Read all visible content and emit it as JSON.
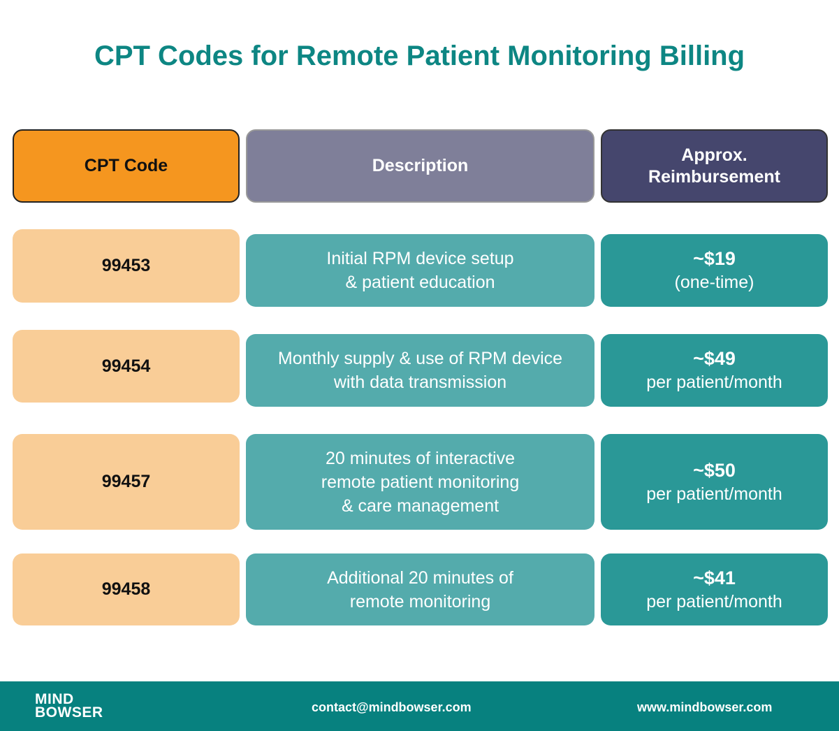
{
  "title": "CPT Codes for Remote Patient Monitoring Billing",
  "headers": {
    "code": "CPT Code",
    "description": "Description",
    "reimbursement_line1": "Approx.",
    "reimbursement_line2": "Reimbursement"
  },
  "colors": {
    "title": "#0d8683",
    "code_header": "#f5961f",
    "description_header": "#7f7f99",
    "reimbursement_header": "#45466d",
    "code_cell": "#f9cd97",
    "description_cell": "#54abac",
    "reimbursement_cell": "#2a9897",
    "footer": "#07817f"
  },
  "rows": [
    {
      "code": "99453",
      "desc1": "Initial RPM device setup",
      "desc2": "& patient education",
      "desc3": "",
      "amount": "~$19",
      "note": "(one-time)"
    },
    {
      "code": "99454",
      "desc1": "Monthly supply & use of RPM device",
      "desc2": "with data transmission",
      "desc3": "",
      "amount": "~$49",
      "note": "per patient/month"
    },
    {
      "code": "99457",
      "desc1": "20 minutes of interactive",
      "desc2": "remote patient monitoring",
      "desc3": "& care management",
      "amount": "~$50",
      "note": "per patient/month"
    },
    {
      "code": "99458",
      "desc1": "Additional 20 minutes of",
      "desc2": "remote monitoring",
      "desc3": "",
      "amount": "~$41",
      "note": "per patient/month"
    }
  ],
  "footer": {
    "logo_line1": "MIND",
    "logo_line2": "BOWSER",
    "email": "contact@mindbowser.com",
    "website": "www.mindbowser.com"
  }
}
